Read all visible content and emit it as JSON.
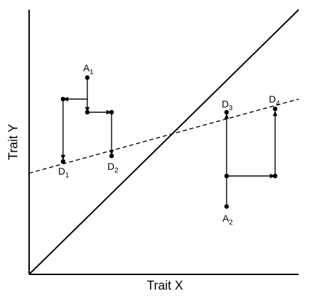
{
  "axes": {
    "x_title": "Trait X",
    "y_title": "Trait Y"
  },
  "points": [
    {
      "id": "A1",
      "base": "A",
      "sub": "1"
    },
    {
      "id": "A2",
      "base": "A",
      "sub": "2"
    },
    {
      "id": "D1",
      "base": "D",
      "sub": "1"
    },
    {
      "id": "D2",
      "base": "D",
      "sub": "2"
    },
    {
      "id": "D3",
      "base": "D",
      "sub": "3"
    },
    {
      "id": "D4",
      "base": "D",
      "sub": "4"
    }
  ],
  "lines": {
    "identity": {
      "style": "solid"
    },
    "regression": {
      "style": "dashed"
    }
  },
  "colors": {
    "ink": "#000000",
    "background": "#ffffff"
  }
}
